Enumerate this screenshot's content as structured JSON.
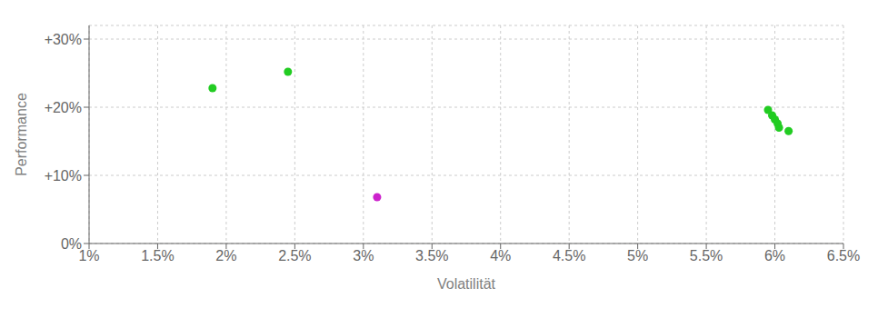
{
  "chart_data": {
    "type": "scatter",
    "xlabel": "Volatilität",
    "ylabel": "Performance",
    "grid": true,
    "xlim": [
      0.01,
      0.065
    ],
    "ylim": [
      0.0,
      0.32
    ],
    "xticks": [
      {
        "value": 0.01,
        "label": "1%"
      },
      {
        "value": 0.015,
        "label": "1.5%"
      },
      {
        "value": 0.02,
        "label": "2%"
      },
      {
        "value": 0.025,
        "label": "2.5%"
      },
      {
        "value": 0.03,
        "label": "3%"
      },
      {
        "value": 0.035,
        "label": "3.5%"
      },
      {
        "value": 0.04,
        "label": "4%"
      },
      {
        "value": 0.045,
        "label": "4.5%"
      },
      {
        "value": 0.05,
        "label": "5%"
      },
      {
        "value": 0.055,
        "label": "5.5%"
      },
      {
        "value": 0.06,
        "label": "6%"
      },
      {
        "value": 0.065,
        "label": "6.5%"
      }
    ],
    "yticks": [
      {
        "value": 0.0,
        "label": "0%"
      },
      {
        "value": 0.1,
        "label": "+10%"
      },
      {
        "value": 0.2,
        "label": "+20%"
      },
      {
        "value": 0.3,
        "label": "+30%"
      }
    ],
    "series": [
      {
        "color": "#22cc22",
        "x": [
          0.019,
          0.0245,
          0.0595,
          0.0598,
          0.06,
          0.0602,
          0.0603,
          0.061
        ],
        "values": [
          0.228,
          0.252,
          0.196,
          0.188,
          0.182,
          0.176,
          0.17,
          0.165
        ]
      },
      {
        "color": "#cc22cc",
        "x": [
          0.031
        ],
        "values": [
          0.068
        ]
      }
    ]
  }
}
